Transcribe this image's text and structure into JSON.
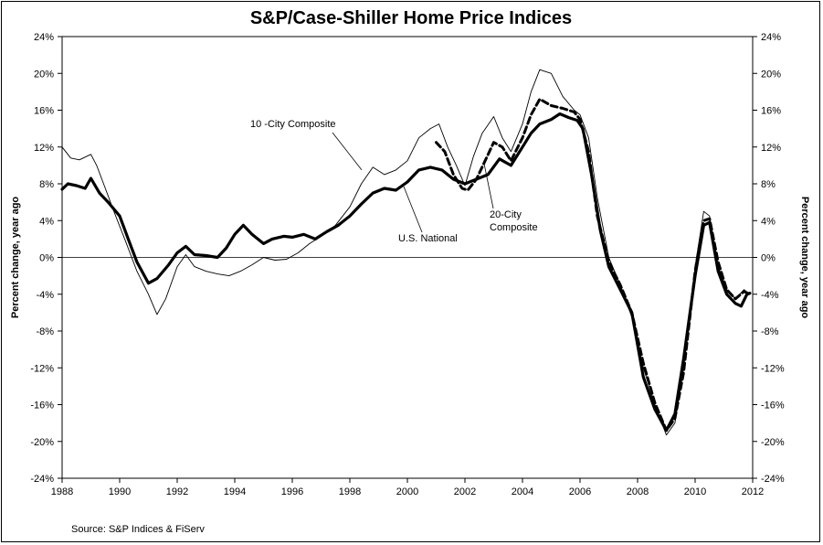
{
  "chart_data": {
    "type": "line",
    "title": "S&P/Case-Shiller Home Price Indices",
    "ylabel_left": "Percent change, year ago",
    "ylabel_right": "Percent change, year ago",
    "source": "Source: S&P Indices & FiServ",
    "xlim": [
      1988,
      2012
    ],
    "ylim": [
      -24,
      24
    ],
    "x_ticks": [
      1988,
      1990,
      1992,
      1994,
      1996,
      1998,
      2000,
      2002,
      2004,
      2006,
      2008,
      2010,
      2012
    ],
    "x_tick_labels": [
      "1988",
      "1990",
      "1992",
      "1994",
      "1996",
      "1998",
      "2000",
      "2002",
      "2004",
      "2006",
      "2008",
      "2010",
      "2012"
    ],
    "y_ticks": [
      -24,
      -20,
      -16,
      -12,
      -8,
      -4,
      0,
      4,
      8,
      12,
      16,
      20,
      24
    ],
    "y_tick_labels": [
      "-24%",
      "-20%",
      "-16%",
      "-12%",
      "-8%",
      "-4%",
      "0%",
      "4%",
      "8%",
      "12%",
      "16%",
      "20%",
      "24%"
    ],
    "zero_line": true,
    "grid": false,
    "annotations": [
      {
        "text": "10 -City Composite",
        "series": "10 -City Composite"
      },
      {
        "text": "U.S. National",
        "series": "U.S. National"
      },
      {
        "text": "20-City",
        "series": "20-City Composite"
      },
      {
        "text": "Composite",
        "series": "20-City Composite"
      }
    ],
    "series": [
      {
        "name": "10 -City Composite",
        "color": "#000000",
        "style": "thin",
        "x": [
          1988.0,
          1988.3,
          1988.6,
          1989.0,
          1989.2,
          1989.5,
          1989.8,
          1990.2,
          1990.6,
          1991.0,
          1991.3,
          1991.6,
          1992.0,
          1992.3,
          1992.6,
          1993.0,
          1993.4,
          1993.8,
          1994.2,
          1994.6,
          1995.0,
          1995.4,
          1995.8,
          1996.2,
          1996.6,
          1997.0,
          1997.5,
          1998.0,
          1998.4,
          1998.8,
          1999.2,
          1999.6,
          2000.0,
          2000.4,
          2000.8,
          2001.1,
          2001.4,
          2001.7,
          2002.0,
          2002.3,
          2002.6,
          2003.0,
          2003.3,
          2003.6,
          2004.0,
          2004.3,
          2004.6,
          2005.0,
          2005.4,
          2005.8,
          2006.0,
          2006.3,
          2006.6,
          2007.0,
          2007.4,
          2007.8,
          2008.2,
          2008.6,
          2009.0,
          2009.3,
          2009.6,
          2010.0,
          2010.3,
          2010.5,
          2010.8,
          2011.1,
          2011.4,
          2011.7,
          2011.9
        ],
        "y": [
          12.0,
          10.8,
          10.6,
          11.2,
          10.0,
          7.5,
          5.0,
          1.8,
          -1.5,
          -4.0,
          -6.2,
          -4.5,
          -1.0,
          0.3,
          -1.0,
          -1.5,
          -1.8,
          -2.0,
          -1.5,
          -0.8,
          0.0,
          -0.3,
          -0.2,
          0.5,
          1.5,
          2.3,
          3.5,
          5.5,
          8.0,
          9.8,
          9.0,
          9.5,
          10.5,
          13.0,
          14.0,
          14.5,
          12.0,
          10.0,
          7.8,
          11.0,
          13.5,
          15.3,
          13.0,
          11.5,
          14.5,
          18.0,
          20.4,
          20.0,
          17.5,
          16.0,
          15.5,
          13.0,
          6.5,
          0.0,
          -3.0,
          -6.5,
          -12.0,
          -16.0,
          -19.3,
          -18.0,
          -12.0,
          -1.0,
          5.0,
          4.5,
          -1.0,
          -3.5,
          -4.5,
          -3.5,
          -4.0
        ]
      },
      {
        "name": "20-City Composite",
        "color": "#000000",
        "style": "dashed",
        "x": [
          2001.0,
          2001.3,
          2001.6,
          2001.9,
          2002.1,
          2002.4,
          2002.7,
          2003.0,
          2003.3,
          2003.6,
          2004.0,
          2004.3,
          2004.6,
          2005.0,
          2005.4,
          2005.8,
          2006.0,
          2006.3,
          2006.6,
          2007.0,
          2007.4,
          2007.8,
          2008.2,
          2008.6,
          2009.0,
          2009.3,
          2009.6,
          2010.0,
          2010.3,
          2010.5,
          2010.8,
          2011.1,
          2011.4,
          2011.7,
          2011.9
        ],
        "y": [
          12.5,
          11.5,
          9.0,
          7.5,
          7.3,
          8.5,
          10.5,
          12.5,
          12.0,
          10.5,
          13.0,
          15.5,
          17.2,
          16.5,
          16.2,
          15.8,
          15.0,
          11.5,
          4.5,
          -0.5,
          -3.0,
          -6.0,
          -11.5,
          -15.8,
          -18.8,
          -17.5,
          -12.5,
          -1.5,
          4.0,
          4.2,
          -0.5,
          -3.5,
          -4.5,
          -3.7,
          -4.0
        ]
      },
      {
        "name": "U.S. National",
        "color": "#000000",
        "style": "bold",
        "x": [
          1988.0,
          1988.2,
          1988.5,
          1988.8,
          1989.0,
          1989.3,
          1989.6,
          1990.0,
          1990.3,
          1990.6,
          1991.0,
          1991.3,
          1991.7,
          1992.0,
          1992.3,
          1992.6,
          1993.0,
          1993.4,
          1993.7,
          1994.0,
          1994.3,
          1994.6,
          1995.0,
          1995.3,
          1995.7,
          1996.0,
          1996.4,
          1996.8,
          1997.2,
          1997.6,
          1998.0,
          1998.4,
          1998.8,
          1999.2,
          1999.6,
          2000.0,
          2000.4,
          2000.8,
          2001.2,
          2001.6,
          2002.0,
          2002.4,
          2002.8,
          2003.2,
          2003.6,
          2004.0,
          2004.3,
          2004.6,
          2005.0,
          2005.3,
          2005.6,
          2005.9,
          2006.1,
          2006.4,
          2006.7,
          2007.0,
          2007.4,
          2007.8,
          2008.2,
          2008.6,
          2009.0,
          2009.3,
          2009.6,
          2010.0,
          2010.3,
          2010.5,
          2010.8,
          2011.1,
          2011.4,
          2011.6,
          2011.8,
          2011.9
        ],
        "y": [
          7.4,
          8.0,
          7.8,
          7.5,
          8.6,
          7.0,
          6.0,
          4.5,
          2.0,
          -0.5,
          -2.8,
          -2.3,
          -0.8,
          0.5,
          1.2,
          0.3,
          0.2,
          0.0,
          1.0,
          2.5,
          3.5,
          2.5,
          1.5,
          2.0,
          2.3,
          2.2,
          2.5,
          2.0,
          2.8,
          3.5,
          4.5,
          5.8,
          7.0,
          7.5,
          7.3,
          8.2,
          9.5,
          9.8,
          9.5,
          8.5,
          8.0,
          8.5,
          9.0,
          10.7,
          10.0,
          12.0,
          13.5,
          14.5,
          15.0,
          15.6,
          15.2,
          14.9,
          14.0,
          9.0,
          3.0,
          -1.0,
          -3.5,
          -6.0,
          -13.0,
          -16.5,
          -18.8,
          -17.0,
          -11.0,
          -2.0,
          3.5,
          3.8,
          -1.5,
          -4.0,
          -5.0,
          -5.3,
          -4.0,
          -3.9
        ]
      }
    ]
  }
}
